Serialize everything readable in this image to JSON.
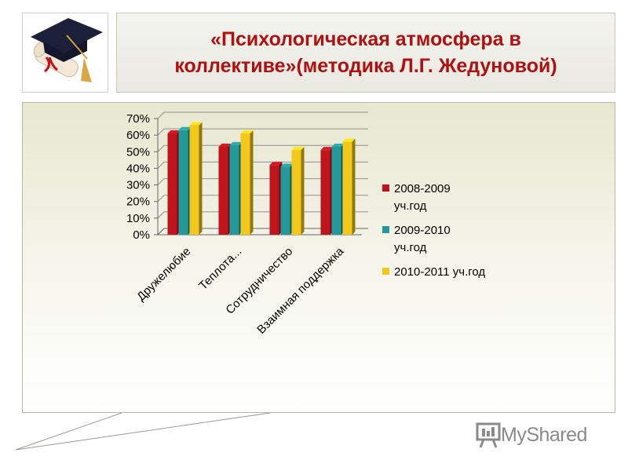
{
  "header": {
    "title_line1": "«Психологическая атмосфера в",
    "title_line2": "коллективе»(методика Л.Г. Жедуновой)"
  },
  "logo": {
    "icon": "graduation-cap-with-diploma-icon"
  },
  "chart_data": {
    "type": "bar",
    "categories": [
      "Дружелюбие",
      "Теплота...",
      "Сотрудничество",
      "Взаимная поддержка"
    ],
    "series": [
      {
        "name": "2008-2009 уч.год",
        "name_lines": [
          "2008-2009",
          "уч.год"
        ],
        "color": "#c0141c",
        "values": [
          61,
          53,
          42,
          51
        ]
      },
      {
        "name": "2009-2010 уч.год",
        "name_lines": [
          "2009-2010",
          "уч.год"
        ],
        "color": "#23999a",
        "values": [
          63,
          54,
          41,
          53
        ]
      },
      {
        "name": "2010-2011 уч.год",
        "name_lines": [
          "2010-2011  уч.год"
        ],
        "color": "#f3c81c",
        "values": [
          66,
          61,
          51,
          56
        ]
      }
    ],
    "yticks": [
      "0%",
      "10%",
      "20%",
      "30%",
      "40%",
      "50%",
      "60%",
      "70%"
    ],
    "ylim": [
      0,
      70
    ],
    "grid": true,
    "legend_position": "right"
  },
  "watermark": {
    "text": "MyShared",
    "icon": "presentation-board-icon"
  }
}
